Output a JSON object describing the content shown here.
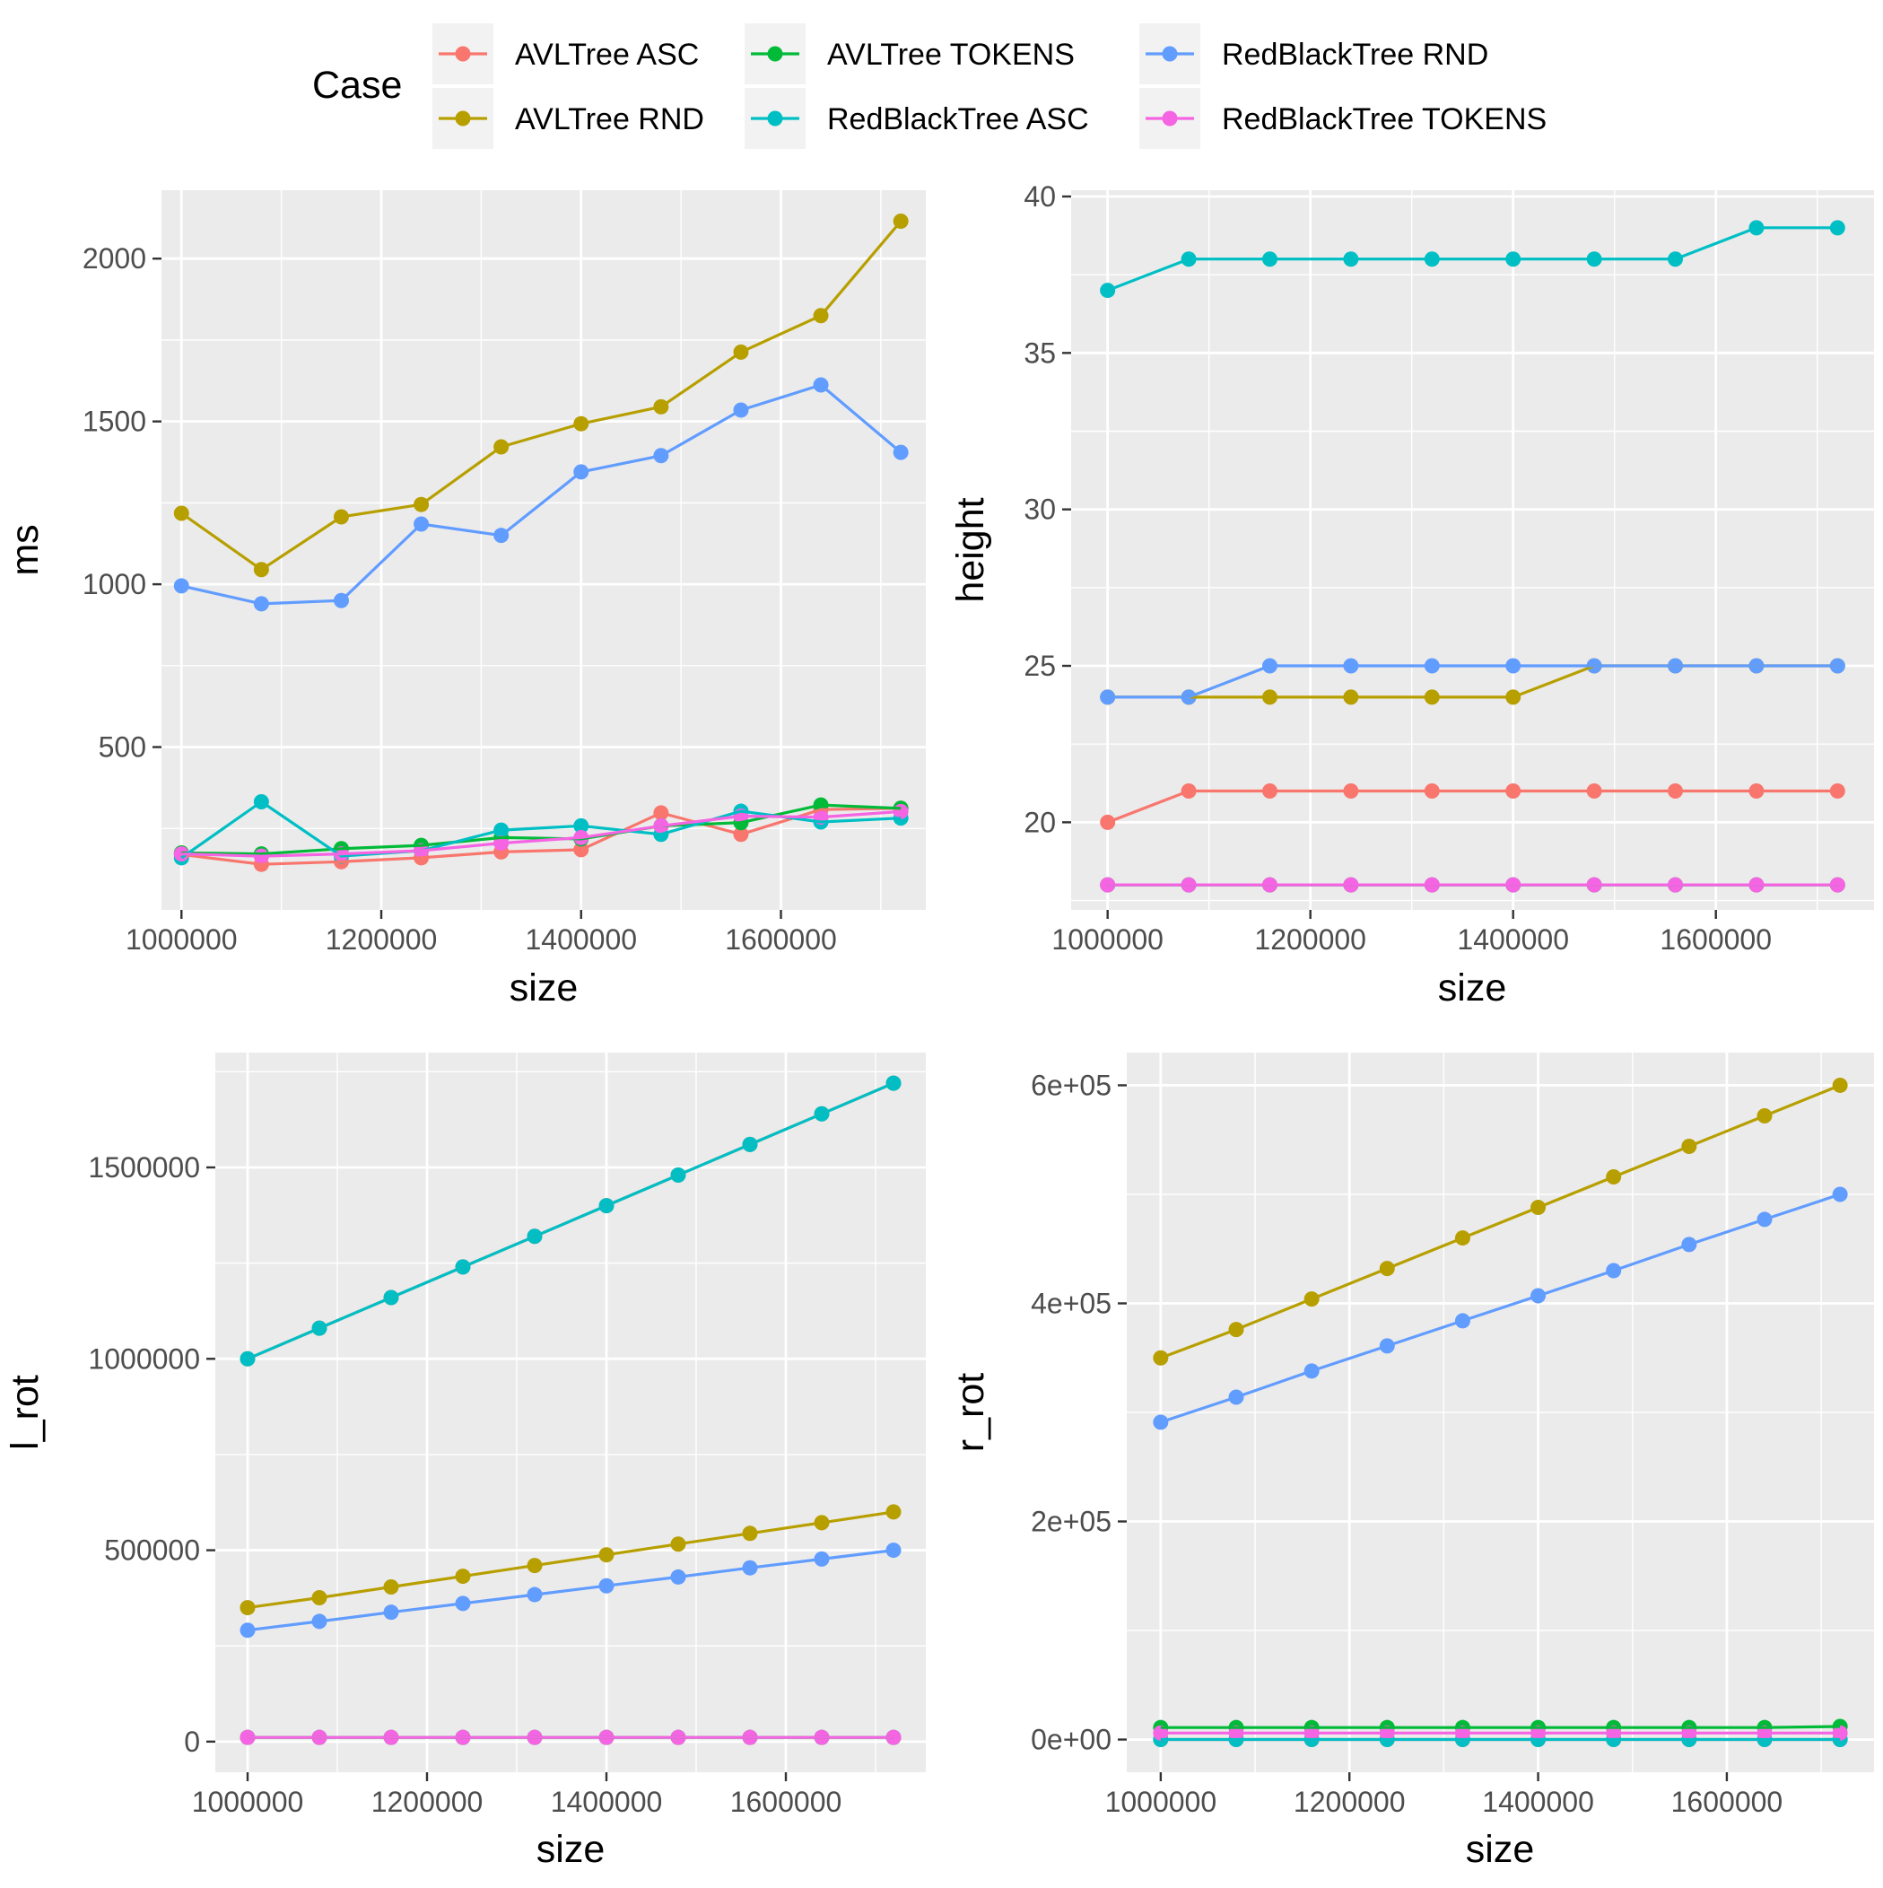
{
  "legend": {
    "title": "Case",
    "items": [
      {
        "label": "AVLTree ASC",
        "color": "#F8766D"
      },
      {
        "label": "AVLTree RND",
        "color": "#B79F00"
      },
      {
        "label": "AVLTree TOKENS",
        "color": "#00BA38"
      },
      {
        "label": "RedBlackTree ASC",
        "color": "#00BFC4"
      },
      {
        "label": "RedBlackTree RND",
        "color": "#619CFF"
      },
      {
        "label": "RedBlackTree TOKENS",
        "color": "#F564E3"
      }
    ]
  },
  "chart_data": [
    {
      "type": "line",
      "xlabel": "size",
      "ylabel": "ms",
      "x": [
        1000000,
        1080000,
        1160000,
        1240000,
        1320000,
        1400000,
        1480000,
        1560000,
        1640000,
        1720000
      ],
      "xlim": [
        980000,
        1745000
      ],
      "ylim": [
        0,
        2210
      ],
      "xticks": [
        1000000,
        1200000,
        1400000,
        1600000
      ],
      "xtick_labels": [
        "1000000",
        "1200000",
        "1400000",
        "1600000"
      ],
      "yticks": [
        500,
        1000,
        1500,
        2000
      ],
      "ytick_labels": [
        "500",
        "1000",
        "1500",
        "2000"
      ],
      "grid": true,
      "series": [
        {
          "name": "AVLTree ASC",
          "color": "#F8766D",
          "values": [
            170,
            140,
            148,
            160,
            178,
            185,
            298,
            232,
            308,
            312
          ]
        },
        {
          "name": "AVLTree RND",
          "color": "#B79F00",
          "values": [
            1218,
            1045,
            1207,
            1245,
            1422,
            1493,
            1545,
            1713,
            1825,
            2115
          ]
        },
        {
          "name": "AVLTree TOKENS",
          "color": "#00BA38",
          "values": [
            175,
            172,
            188,
            198,
            222,
            218,
            258,
            268,
            322,
            312
          ]
        },
        {
          "name": "RedBlackTree ASC",
          "color": "#00BFC4",
          "values": [
            160,
            332,
            165,
            182,
            245,
            258,
            232,
            303,
            270,
            282
          ]
        },
        {
          "name": "RedBlackTree RND",
          "color": "#619CFF",
          "values": [
            995,
            940,
            950,
            1185,
            1150,
            1345,
            1395,
            1535,
            1612,
            1405
          ]
        },
        {
          "name": "RedBlackTree TOKENS",
          "color": "#F564E3",
          "values": [
            172,
            165,
            172,
            182,
            205,
            222,
            258,
            288,
            285,
            302
          ]
        }
      ]
    },
    {
      "type": "line",
      "xlabel": "size",
      "ylabel": "height",
      "x": [
        1000000,
        1080000,
        1160000,
        1240000,
        1320000,
        1400000,
        1480000,
        1560000,
        1640000,
        1720000
      ],
      "xlim": [
        964000,
        1756000
      ],
      "ylim": [
        17.2,
        40.2
      ],
      "xticks": [
        1000000,
        1200000,
        1400000,
        1600000
      ],
      "xtick_labels": [
        "1000000",
        "1200000",
        "1400000",
        "1600000"
      ],
      "yticks": [
        20,
        25,
        30,
        35,
        40
      ],
      "ytick_labels": [
        "20",
        "25",
        "30",
        "35",
        "40"
      ],
      "grid": true,
      "series": [
        {
          "name": "AVLTree ASC",
          "color": "#F8766D",
          "values": [
            20,
            21,
            21,
            21,
            21,
            21,
            21,
            21,
            21,
            21
          ]
        },
        {
          "name": "AVLTree RND",
          "color": "#B79F00",
          "values": [
            24,
            24,
            24,
            24,
            24,
            24,
            25,
            25,
            25,
            25
          ]
        },
        {
          "name": "AVLTree TOKENS",
          "color": "#00BA38",
          "values": [
            18,
            18,
            18,
            18,
            18,
            18,
            18,
            18,
            18,
            18
          ]
        },
        {
          "name": "RedBlackTree ASC",
          "color": "#00BFC4",
          "values": [
            37,
            38,
            38,
            38,
            38,
            38,
            38,
            38,
            39,
            39
          ]
        },
        {
          "name": "RedBlackTree RND",
          "color": "#619CFF",
          "values": [
            24,
            24,
            25,
            25,
            25,
            25,
            25,
            25,
            25,
            25
          ]
        },
        {
          "name": "RedBlackTree TOKENS",
          "color": "#F564E3",
          "values": [
            18,
            18,
            18,
            18,
            18,
            18,
            18,
            18,
            18,
            18
          ]
        }
      ]
    },
    {
      "type": "line",
      "xlabel": "size",
      "ylabel": "l_rot",
      "x": [
        1000000,
        1080000,
        1160000,
        1240000,
        1320000,
        1400000,
        1480000,
        1560000,
        1640000,
        1720000
      ],
      "xlim": [
        964000,
        1756000
      ],
      "ylim": [
        -80000,
        1800000
      ],
      "xticks": [
        1000000,
        1200000,
        1400000,
        1600000
      ],
      "xtick_labels": [
        "1000000",
        "1200000",
        "1400000",
        "1600000"
      ],
      "yticks": [
        0,
        500000,
        1000000,
        1500000
      ],
      "ytick_labels": [
        "0",
        "500000",
        "1000000",
        "1500000"
      ],
      "grid": true,
      "series": [
        {
          "name": "AVLTree ASC",
          "color": "#F8766D",
          "values": [
            1000000,
            1080000,
            1160000,
            1240000,
            1320000,
            1400000,
            1480000,
            1560000,
            1640000,
            1720000
          ]
        },
        {
          "name": "AVLTree RND",
          "color": "#B79F00",
          "values": [
            350000,
            376000,
            404000,
            432000,
            460000,
            488000,
            516000,
            544000,
            572000,
            600000
          ]
        },
        {
          "name": "AVLTree TOKENS",
          "color": "#00BA38",
          "values": [
            11000,
            11000,
            11000,
            11000,
            11000,
            11000,
            11000,
            11000,
            11000,
            11000
          ]
        },
        {
          "name": "RedBlackTree ASC",
          "color": "#00BFC4",
          "values": [
            1000000,
            1080000,
            1160000,
            1240000,
            1320000,
            1400000,
            1480000,
            1560000,
            1640000,
            1720000
          ]
        },
        {
          "name": "RedBlackTree RND",
          "color": "#619CFF",
          "values": [
            291000,
            314000,
            338000,
            361000,
            384000,
            407000,
            430000,
            454000,
            477000,
            500000
          ]
        },
        {
          "name": "RedBlackTree TOKENS",
          "color": "#F564E3",
          "values": [
            11000,
            11000,
            11000,
            11000,
            11000,
            11000,
            11000,
            11000,
            11000,
            11000
          ]
        }
      ]
    },
    {
      "type": "line",
      "xlabel": "size",
      "ylabel": "r_rot",
      "x": [
        1000000,
        1080000,
        1160000,
        1240000,
        1320000,
        1400000,
        1480000,
        1560000,
        1640000,
        1720000
      ],
      "xlim": [
        964000,
        1756000
      ],
      "ylim": [
        -30000,
        630000
      ],
      "xticks": [
        1000000,
        1200000,
        1400000,
        1600000
      ],
      "xtick_labels": [
        "1000000",
        "1200000",
        "1400000",
        "1600000"
      ],
      "yticks": [
        0,
        200000,
        400000,
        600000
      ],
      "ytick_labels": [
        "0e+00",
        "2e+05",
        "4e+05",
        "6e+05"
      ],
      "grid": true,
      "series": [
        {
          "name": "AVLTree ASC",
          "color": "#F8766D",
          "values": [
            0,
            0,
            0,
            0,
            0,
            0,
            0,
            0,
            0,
            0
          ]
        },
        {
          "name": "AVLTree RND",
          "color": "#B79F00",
          "values": [
            350000,
            376000,
            404000,
            432000,
            460000,
            488000,
            516000,
            544000,
            572000,
            600000
          ]
        },
        {
          "name": "AVLTree TOKENS",
          "color": "#00BA38",
          "values": [
            11000,
            11000,
            11000,
            11000,
            11000,
            11000,
            11000,
            11000,
            11000,
            12000
          ]
        },
        {
          "name": "RedBlackTree ASC",
          "color": "#00BFC4",
          "values": [
            0,
            0,
            0,
            0,
            0,
            0,
            0,
            0,
            0,
            0
          ]
        },
        {
          "name": "RedBlackTree RND",
          "color": "#619CFF",
          "values": [
            291000,
            314000,
            338000,
            361000,
            384000,
            407000,
            430000,
            454000,
            477000,
            500000
          ]
        },
        {
          "name": "RedBlackTree TOKENS",
          "color": "#F564E3",
          "values": [
            6000,
            6000,
            6000,
            6000,
            6000,
            6000,
            6000,
            6000,
            6000,
            6000
          ]
        }
      ]
    }
  ]
}
